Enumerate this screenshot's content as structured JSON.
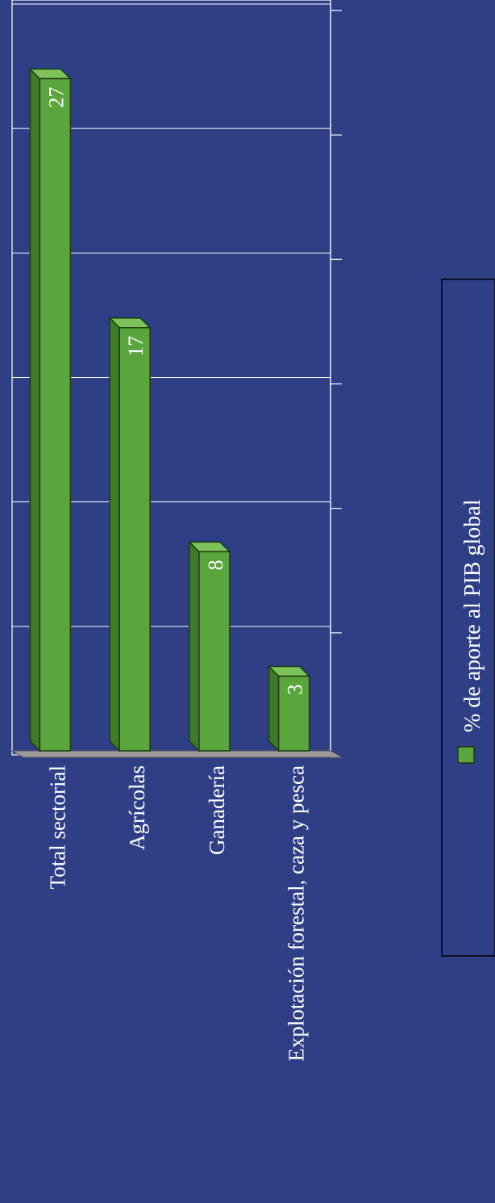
{
  "chart_data": {
    "type": "bar",
    "orientation": "vertical (figure rotated 90° clockwise)",
    "categories": [
      "Total sectorial",
      "Agrícolas",
      "Ganadería",
      "Explotación forestal, caza y pesca"
    ],
    "series": [
      {
        "name": "% de aporte al PIB global",
        "values": [
          27,
          17,
          8,
          3
        ]
      }
    ],
    "data_labels": [
      "27",
      "17",
      "8",
      "3"
    ],
    "ylim": [
      0,
      30
    ],
    "y_tick_step": 5,
    "grid": true,
    "legend_placement": "right",
    "colors": {
      "background": "#2f3f86",
      "bar_front": "#5aa63c",
      "bar_side": "#3f7a28",
      "bar_top": "#7cc35a",
      "grid": "#ffffff",
      "text": "#ffffff"
    }
  }
}
